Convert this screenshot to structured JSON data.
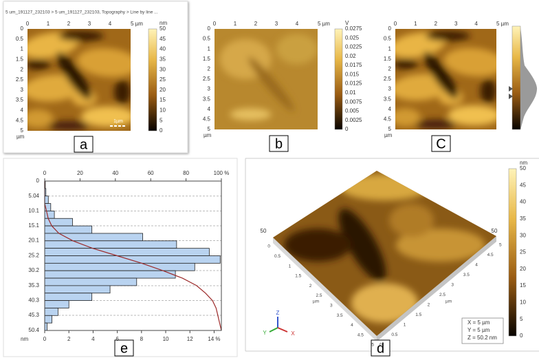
{
  "panels": {
    "a": {
      "title": "5 um_191127_232103 > 5 um_191127_232103, Topography > Line by line ...",
      "x_ticks": [
        "0",
        "1",
        "2",
        "3",
        "4",
        "5 µm"
      ],
      "y_ticks": [
        "0",
        "0.5",
        "1",
        "1.5",
        "2",
        "2.5",
        "3",
        "3.5",
        "4",
        "4.5",
        "5"
      ],
      "axis_unit": "µm",
      "colorbar_unit": "nm",
      "colorbar_ticks": [
        "50",
        "45",
        "40",
        "35",
        "30",
        "25",
        "20",
        "15",
        "10",
        "5",
        "0"
      ],
      "scale_bar": "1µm",
      "label": "a"
    },
    "b": {
      "x_ticks": [
        "0",
        "1",
        "2",
        "3",
        "4",
        "5 µm"
      ],
      "y_ticks": [
        "0",
        "0.5",
        "1",
        "1.5",
        "2",
        "2.5",
        "3",
        "3.5",
        "4",
        "4.5",
        "5"
      ],
      "axis_unit": "µm",
      "colorbar_unit": "V",
      "colorbar_ticks": [
        "0.0275",
        "0.025",
        "0.0225",
        "0.02",
        "0.0175",
        "0.015",
        "0.0125",
        "0.01",
        "0.0075",
        "0.005",
        "0.0025",
        "0"
      ],
      "label": "b"
    },
    "c": {
      "x_ticks": [
        "0",
        "1",
        "2",
        "3",
        "4",
        "5 µm"
      ],
      "y_ticks": [
        "0",
        "0.5",
        "1",
        "1.5",
        "2",
        "2.5",
        "3",
        "3.5",
        "4",
        "4.5",
        "5"
      ],
      "axis_unit": "µm",
      "label": "C"
    },
    "d": {
      "colorbar_unit": "nm",
      "colorbar_ticks": [
        "50",
        "45",
        "40",
        "35",
        "30",
        "25",
        "20",
        "15",
        "10",
        "5",
        "0"
      ],
      "edge_ticks": [
        "0",
        "0.5",
        "1",
        "1.5",
        "2",
        "2.5",
        "3",
        "3.5",
        "4",
        "4.5",
        "5"
      ],
      "axis_unit": "µm",
      "z_label": "50",
      "info": [
        "X = 5 µm",
        "Y = 5 µm",
        "Z = 50.2 nm"
      ],
      "triad": [
        "Z",
        "Y",
        "X"
      ],
      "label": "d"
    }
  },
  "chart_data": {
    "type": "histogram",
    "orientation": "horizontal",
    "panel_label": "e",
    "bins": [
      0,
      2.52,
      5.04,
      7.56,
      10.08,
      12.6,
      15.12,
      17.64,
      20.16,
      22.68,
      25.2,
      27.72,
      30.24,
      32.76,
      35.28,
      37.8,
      40.32,
      42.84,
      45.36,
      47.88,
      50.4
    ],
    "values": [
      0.05,
      0.1,
      0.3,
      0.5,
      0.8,
      2.3,
      3.9,
      8.1,
      10.9,
      13.6,
      14.5,
      12.4,
      10.8,
      7.6,
      5.4,
      3.9,
      2.0,
      1.1,
      0.6,
      0.2
    ],
    "color": "#b9d3f0",
    "cumulative": [
      0,
      0,
      0,
      0,
      1,
      2,
      4,
      8,
      16,
      27,
      41,
      55,
      67,
      78,
      86,
      91,
      95,
      97,
      98,
      99,
      100
    ],
    "cumulative_color": "#9c2a2a",
    "ylim": [
      0,
      50.4
    ],
    "yticks": [
      0,
      5.04,
      10.1,
      15.1,
      20.1,
      25.2,
      30.2,
      35.3,
      40.3,
      45.3,
      50.4
    ],
    "ylabel": "nm",
    "xlim": [
      0,
      14.6
    ],
    "xticks": [
      0,
      2,
      4,
      6,
      8,
      10,
      12,
      {
        "value": 14,
        "label": "14 %"
      }
    ],
    "x2lim": [
      0,
      100
    ],
    "x2ticks": [
      0,
      20,
      40,
      60,
      80,
      {
        "value": 100,
        "label": "100 %"
      }
    ],
    "grid": true
  }
}
